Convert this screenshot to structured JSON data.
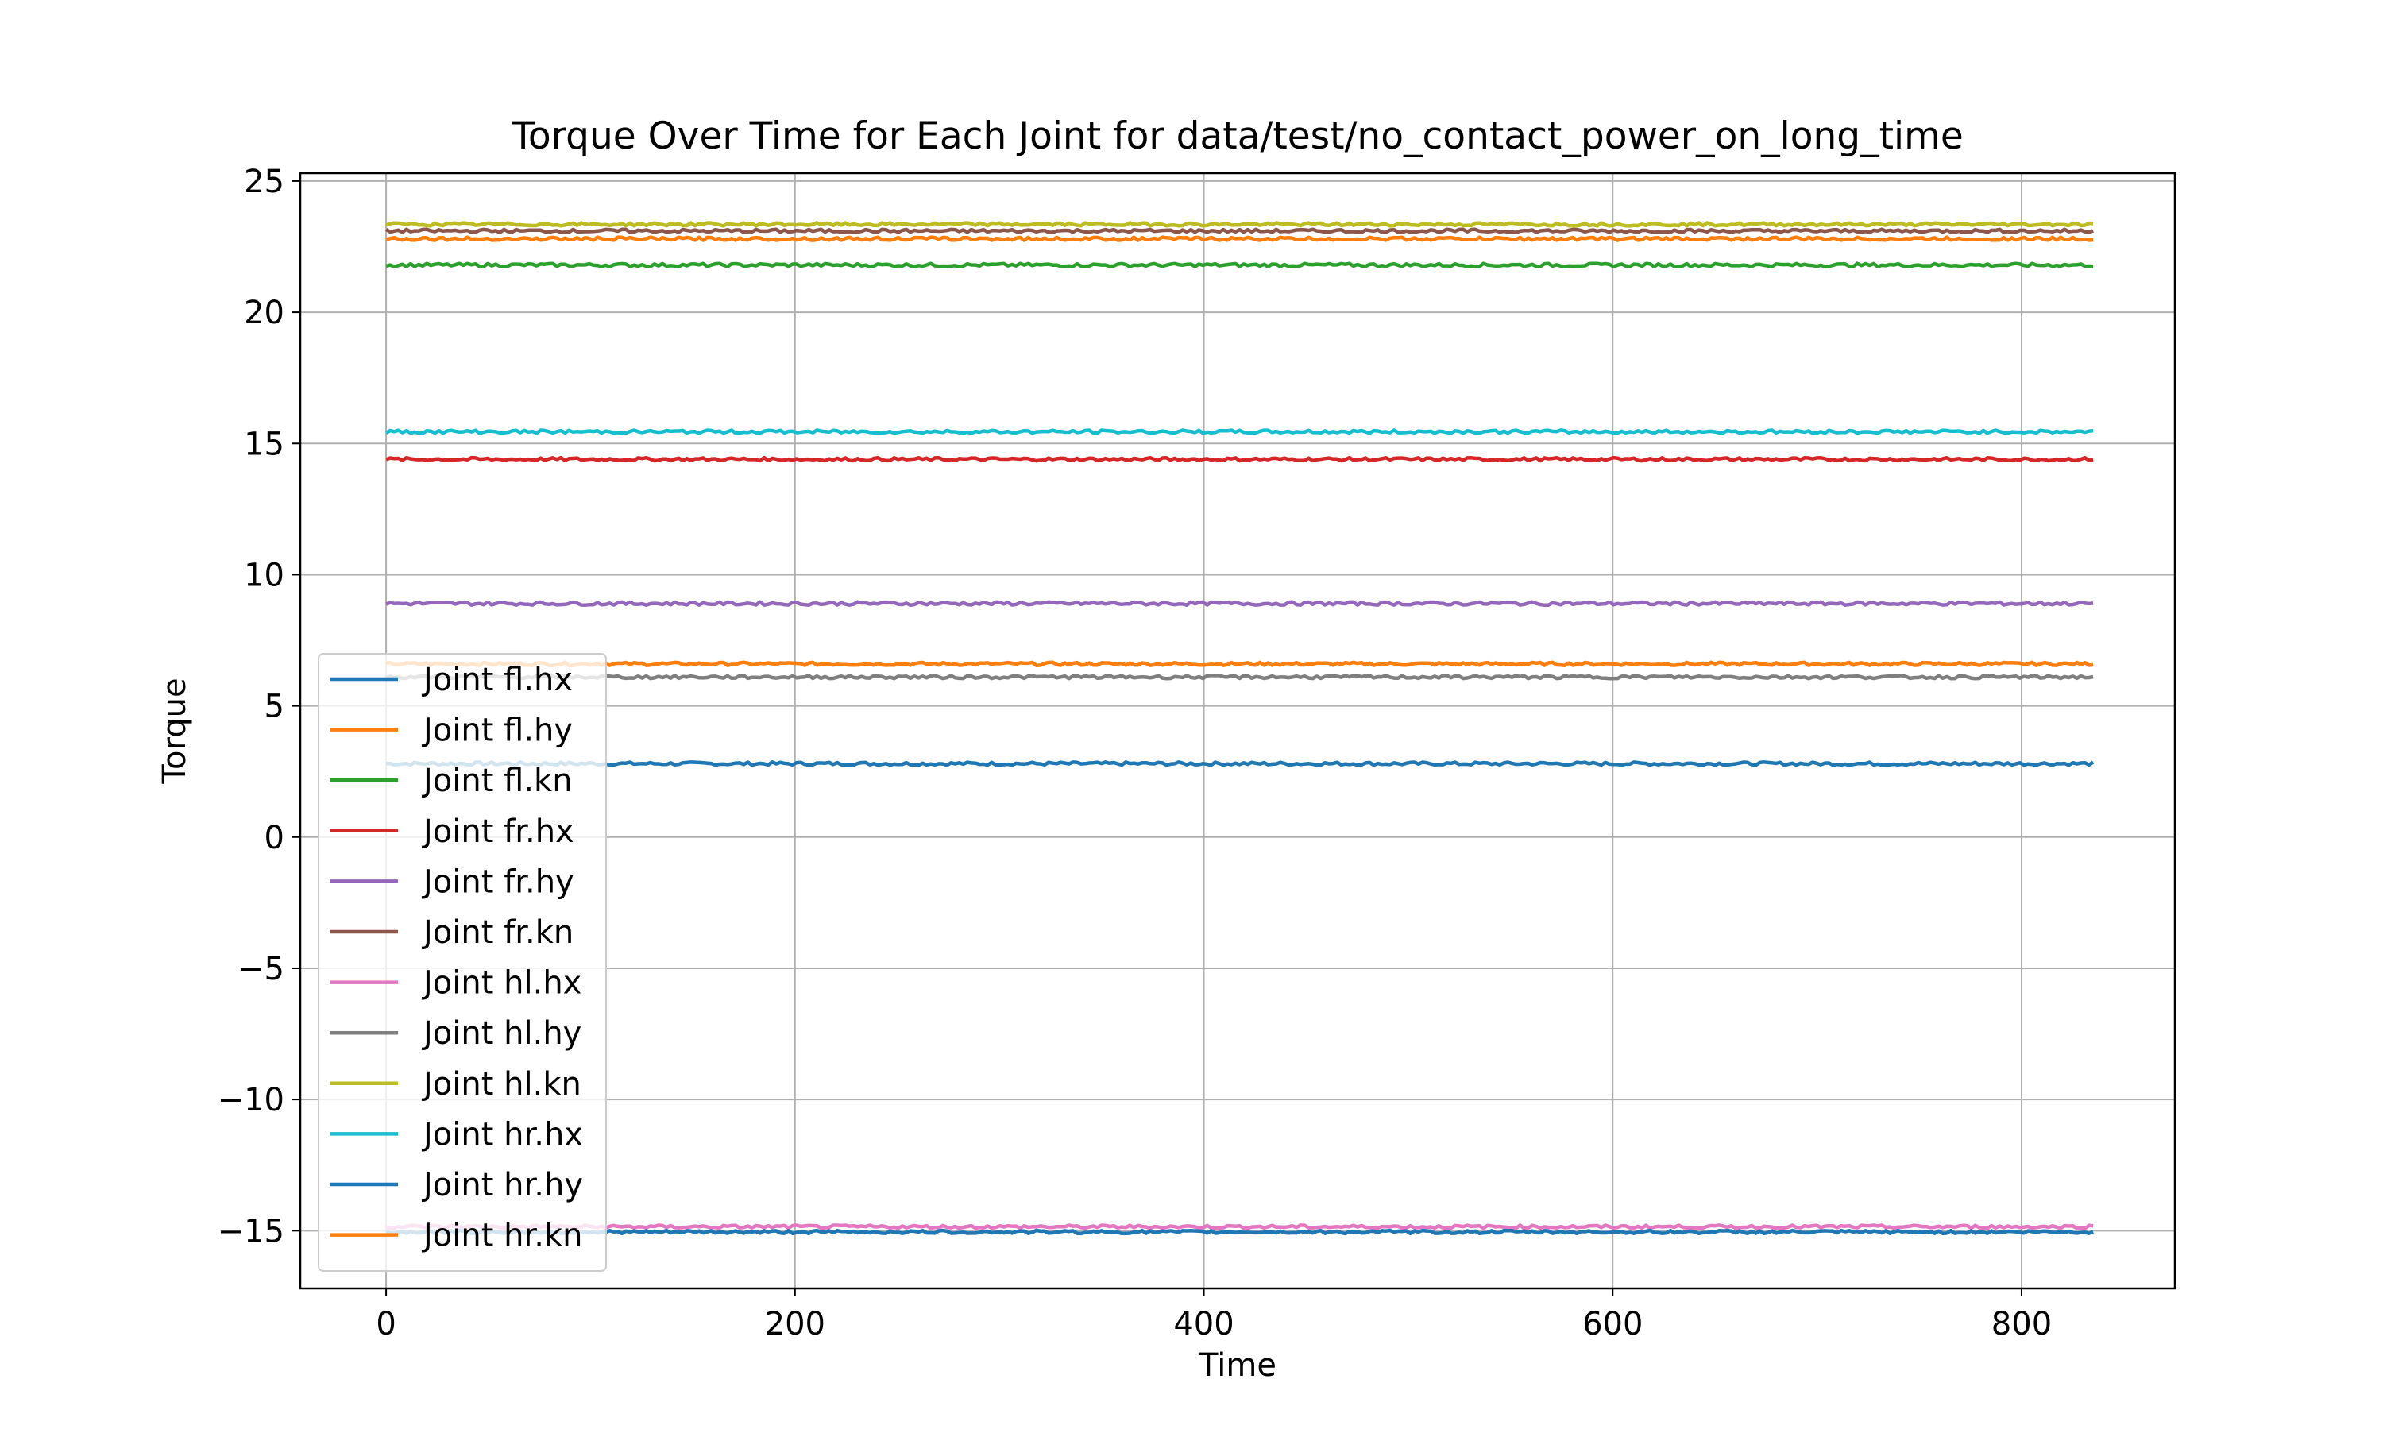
{
  "chart_data": {
    "type": "line",
    "title": "Torque Over Time for Each Joint for data/test/no_contact_power_on_long_time",
    "xlabel": "Time",
    "ylabel": "Torque",
    "xlim": [
      -42,
      875
    ],
    "ylim": [
      -17.2,
      25.3
    ],
    "x_ticks": [
      0,
      200,
      400,
      600,
      800
    ],
    "y_ticks": [
      -15,
      -10,
      -5,
      0,
      5,
      10,
      15,
      20,
      25
    ],
    "x_tick_labels": [
      "0",
      "200",
      "400",
      "600",
      "800"
    ],
    "y_tick_labels": [
      "−15",
      "−10",
      "−5",
      "0",
      "5",
      "10",
      "15",
      "20",
      "25"
    ],
    "grid": true,
    "legend_position": "lower-left",
    "x_range": [
      0,
      835
    ],
    "series": [
      {
        "name": "Joint fl.hx",
        "color": "#1f77b4",
        "value": 2.8
      },
      {
        "name": "Joint fl.hy",
        "color": "#ff7f0e",
        "value": 6.6
      },
      {
        "name": "Joint fl.kn",
        "color": "#2ca02c",
        "value": 21.8
      },
      {
        "name": "Joint fr.hx",
        "color": "#d62728",
        "value": 14.4
      },
      {
        "name": "Joint fr.hy",
        "color": "#9467bd",
        "value": 8.9
      },
      {
        "name": "Joint fr.kn",
        "color": "#8c564b",
        "value": 23.1
      },
      {
        "name": "Joint hl.hx",
        "color": "#e377c2",
        "value": -14.85
      },
      {
        "name": "Joint hl.hy",
        "color": "#7f7f7f",
        "value": 6.1
      },
      {
        "name": "Joint hl.kn",
        "color": "#bcbd22",
        "value": 23.35
      },
      {
        "name": "Joint hr.hx",
        "color": "#17becf",
        "value": 15.45
      },
      {
        "name": "Joint hr.hy",
        "color": "#1f77b4",
        "value": -15.05
      },
      {
        "name": "Joint hr.kn",
        "color": "#ff7f0e",
        "value": 22.8
      }
    ]
  }
}
